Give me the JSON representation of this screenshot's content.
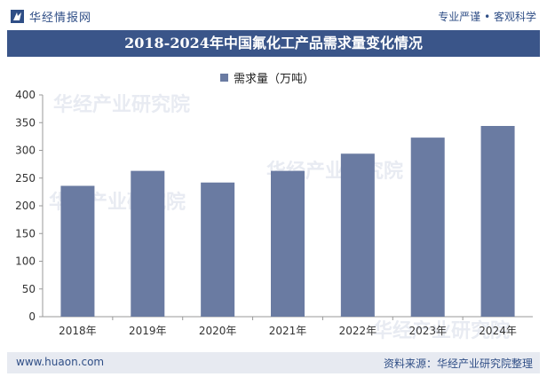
{
  "header": {
    "brand": "华经情报网",
    "slogan": "专业严谨 • 客观科学"
  },
  "title": "2018-2024年中国氟化工产品需求量变化情况",
  "footer": {
    "url": "www.huaon.com",
    "source": "资料来源：华经产业研究院整理"
  },
  "chart_data": {
    "type": "bar",
    "categories": [
      "2018年",
      "2019年",
      "2020年",
      "2021年",
      "2022年",
      "2023年",
      "2024年"
    ],
    "series": [
      {
        "name": "需求量（万吨）",
        "values": [
          236,
          263,
          242,
          263,
          294,
          323,
          344
        ]
      }
    ],
    "ylim": [
      0,
      400
    ],
    "yticks": [
      0,
      50,
      100,
      150,
      200,
      250,
      300,
      350,
      400
    ],
    "grid": false,
    "legend": "top-center",
    "colors": {
      "bar": "#6a7ba2",
      "title_bg": "#3a5589"
    }
  }
}
